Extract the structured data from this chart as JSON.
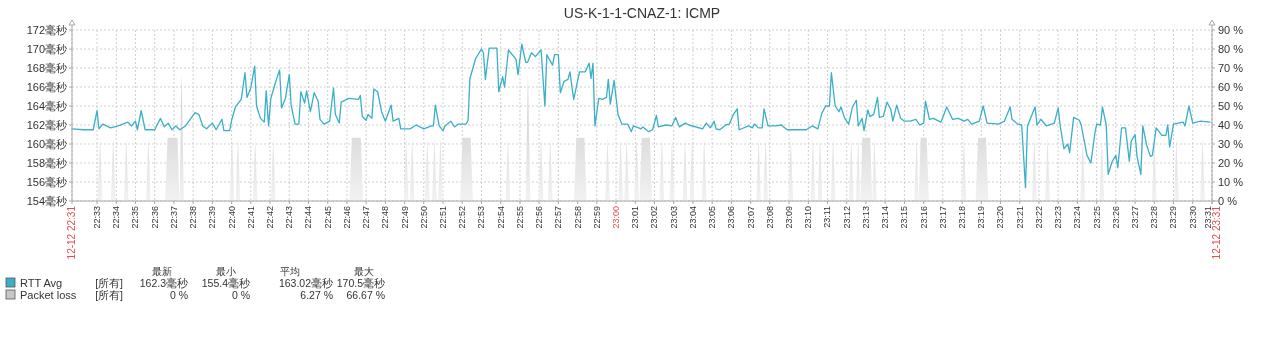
{
  "chart_data": {
    "type": "line",
    "title": "US-K-1-1-CNAZ-1: ICMP",
    "xlim": [
      22.5283,
      23.5167
    ],
    "xticks": [
      {
        "value": 22.5283,
        "label": "12-12 22:31"
      },
      {
        "value": 22.55,
        "label": "22:33"
      },
      {
        "value": 22.5667,
        "label": "22:34"
      },
      {
        "value": 22.5833,
        "label": "22:35"
      },
      {
        "value": 22.6,
        "label": "22:36"
      },
      {
        "value": 22.6167,
        "label": "22:37"
      },
      {
        "value": 22.6333,
        "label": "22:38"
      },
      {
        "value": 22.65,
        "label": "22:39"
      },
      {
        "value": 22.6667,
        "label": "22:40"
      },
      {
        "value": 22.6833,
        "label": "22:41"
      },
      {
        "value": 22.7,
        "label": "22:42"
      },
      {
        "value": 22.7167,
        "label": "22:43"
      },
      {
        "value": 22.7333,
        "label": "22:44"
      },
      {
        "value": 22.75,
        "label": "22:45"
      },
      {
        "value": 22.7667,
        "label": "22:46"
      },
      {
        "value": 22.7833,
        "label": "22:47"
      },
      {
        "value": 22.8,
        "label": "22:48"
      },
      {
        "value": 22.8167,
        "label": "22:49"
      },
      {
        "value": 22.8333,
        "label": "22:50"
      },
      {
        "value": 22.85,
        "label": "22:51"
      },
      {
        "value": 22.8667,
        "label": "22:52"
      },
      {
        "value": 22.8833,
        "label": "22:53"
      },
      {
        "value": 22.9,
        "label": "22:54"
      },
      {
        "value": 22.9167,
        "label": "22:55"
      },
      {
        "value": 22.9333,
        "label": "22:56"
      },
      {
        "value": 22.95,
        "label": "22:57"
      },
      {
        "value": 22.9667,
        "label": "22:58"
      },
      {
        "value": 22.9833,
        "label": "22:59"
      },
      {
        "value": 23,
        "label": "23:00"
      },
      {
        "value": 23.0167,
        "label": "23:01"
      },
      {
        "value": 23.0333,
        "label": "23:02"
      },
      {
        "value": 23.05,
        "label": "23:03"
      },
      {
        "value": 23.0667,
        "label": "23:04"
      },
      {
        "value": 23.0833,
        "label": "23:05"
      },
      {
        "value": 23.1,
        "label": "23:06"
      },
      {
        "value": 23.1167,
        "label": "23:07"
      },
      {
        "value": 23.1333,
        "label": "23:08"
      },
      {
        "value": 23.15,
        "label": "23:09"
      },
      {
        "value": 23.1667,
        "label": "23:10"
      },
      {
        "value": 23.1833,
        "label": "23:11"
      },
      {
        "value": 23.2,
        "label": "23:12"
      },
      {
        "value": 23.2167,
        "label": "23:13"
      },
      {
        "value": 23.2333,
        "label": "23:14"
      },
      {
        "value": 23.25,
        "label": "23:15"
      },
      {
        "value": 23.2667,
        "label": "23:16"
      },
      {
        "value": 23.2833,
        "label": "23:17"
      },
      {
        "value": 23.3,
        "label": "23:18"
      },
      {
        "value": 23.3167,
        "label": "23:19"
      },
      {
        "value": 23.3333,
        "label": "23:20"
      },
      {
        "value": 23.35,
        "label": "23:21"
      },
      {
        "value": 23.3667,
        "label": "23:22"
      },
      {
        "value": 23.3833,
        "label": "23:23"
      },
      {
        "value": 23.4,
        "label": "23:24"
      },
      {
        "value": 23.4167,
        "label": "23:25"
      },
      {
        "value": 23.4333,
        "label": "23:26"
      },
      {
        "value": 23.45,
        "label": "23:27"
      },
      {
        "value": 23.4667,
        "label": "23:28"
      },
      {
        "value": 23.4833,
        "label": "23:29"
      },
      {
        "value": 23.5,
        "label": "23:30"
      },
      {
        "value": 23.5167,
        "label": "23:31"
      },
      {
        "value": 23.5167,
        "label": "12-12 23:31"
      }
    ],
    "ylim": [
      154,
      172
    ],
    "yticks": [
      {
        "value": 154,
        "label": "154毫秒"
      },
      {
        "value": 156,
        "label": "156毫秒"
      },
      {
        "value": 158,
        "label": "158毫秒"
      },
      {
        "value": 160,
        "label": "160毫秒"
      },
      {
        "value": 162,
        "label": "162毫秒"
      },
      {
        "value": 164,
        "label": "164毫秒"
      },
      {
        "value": 166,
        "label": "166毫秒"
      },
      {
        "value": 168,
        "label": "168毫秒"
      },
      {
        "value": 170,
        "label": "170毫秒"
      },
      {
        "value": 172,
        "label": "172毫秒"
      }
    ],
    "y2lim": [
      0,
      90
    ],
    "y2ticks": [
      {
        "value": 0,
        "label": "0 %"
      },
      {
        "value": 10,
        "label": "10 %"
      },
      {
        "value": 20,
        "label": "20 %"
      },
      {
        "value": 30,
        "label": "30 %"
      },
      {
        "value": 40,
        "label": "40 %"
      },
      {
        "value": 50,
        "label": "50 %"
      },
      {
        "value": 60,
        "label": "60 %"
      },
      {
        "value": 70,
        "label": "70 %"
      },
      {
        "value": 80,
        "label": "80 %"
      },
      {
        "value": 90,
        "label": "90 %"
      }
    ],
    "grid": true,
    "legend": "bottom left",
    "annotations": [
      "最新",
      "最小",
      "平均",
      "最大",
      "[所有]",
      "162.3毫秒",
      "155.4毫秒",
      "163.02毫秒",
      "170.5毫秒",
      "[所有]",
      "0 %",
      "0 %",
      "6.27 %",
      "66.67 %"
    ],
    "series": [
      {
        "name": "Packet loss",
        "type": "area",
        "axis": "y2",
        "color": "#c8c8c8",
        "x": [
          22.5283,
          22.5506,
          22.5526,
          22.5546,
          22.562,
          22.564,
          22.566,
          22.5733,
          22.5753,
          22.5773,
          22.5925,
          22.5945,
          22.5965,
          22.6091,
          22.6111,
          22.6198,
          22.6215,
          22.6216,
          22.6233,
          22.6253,
          22.665,
          22.667,
          22.669,
          22.6702,
          22.6722,
          22.6742,
          22.6851,
          22.6871,
          22.6891,
          22.7008,
          22.7028,
          22.7048,
          22.7689,
          22.7709,
          22.7787,
          22.7807,
          22.816,
          22.818,
          22.82,
          22.8212,
          22.8232,
          22.8252,
          22.8343,
          22.8363,
          22.8383,
          22.8405,
          22.8425,
          22.8445,
          22.8457,
          22.8477,
          22.8497,
          22.8649,
          22.8669,
          22.8739,
          22.8759,
          22.9042,
          22.9062,
          22.9082,
          22.9216,
          22.9236,
          22.9256,
          22.933,
          22.935,
          22.937,
          22.9409,
          22.9429,
          22.9449,
          22.9635,
          22.9655,
          22.9725,
          22.9745,
          22.9906,
          22.9926,
          22.9946,
          23.002,
          23.004,
          23.006,
          23.0072,
          23.0092,
          23.0112,
          23.0159,
          23.0179,
          23.0199,
          23.0203,
          23.0223,
          23.0293,
          23.0313,
          23.0377,
          23.0397,
          23.0417,
          23.0465,
          23.0485,
          23.0505,
          23.0578,
          23.0598,
          23.0618,
          23.0639,
          23.0659,
          23.0679,
          23.0744,
          23.0764,
          23.0784,
          23.1216,
          23.1236,
          23.1256,
          23.1277,
          23.1297,
          23.1317,
          23.1495,
          23.1515,
          23.1535,
          23.1687,
          23.1707,
          23.1727,
          23.1748,
          23.1768,
          23.1788,
          23.1862,
          23.1882,
          23.1902,
          23.2019,
          23.2039,
          23.2059,
          23.208,
          23.21,
          23.2117,
          23.2119,
          23.2135,
          23.2204,
          23.222,
          23.2222,
          23.224,
          23.226,
          23.2586,
          23.2606,
          23.2622,
          23.2624,
          23.2641,
          23.2693,
          23.2713,
          23.2996,
          23.3016,
          23.3036,
          23.3118,
          23.3138,
          23.3208,
          23.3228,
          23.3607,
          23.3627,
          23.3647,
          23.3721,
          23.3741,
          23.3761,
          23.4026,
          23.4046,
          23.4066,
          23.4192,
          23.4212,
          23.4232,
          23.4646,
          23.4666,
          23.4686,
          23.4838,
          23.4858,
          23.4878,
          23.5065,
          23.5085,
          23.5105,
          23.515
        ],
        "values": [
          0,
          0,
          33.33,
          0,
          0,
          33.33,
          0,
          0,
          33.33,
          0,
          0,
          33.33,
          0,
          0,
          33.33,
          33.33,
          0,
          0,
          66.67,
          0,
          0,
          33.33,
          0,
          0,
          33.33,
          0,
          0,
          33.33,
          0,
          0,
          33.33,
          0,
          0,
          33.33,
          33.33,
          0,
          0,
          33.33,
          0,
          0,
          33.33,
          0,
          0,
          33.33,
          0,
          0,
          33.33,
          0,
          0,
          33.33,
          0,
          0,
          33.33,
          33.33,
          0,
          0,
          33.33,
          0,
          0,
          66.67,
          0,
          0,
          33.33,
          0,
          0,
          33.33,
          0,
          0,
          33.33,
          33.33,
          0,
          0,
          33.33,
          0,
          0,
          33.33,
          0,
          0,
          33.33,
          0,
          0,
          33.33,
          0,
          0,
          33.33,
          33.33,
          0,
          0,
          33.33,
          0,
          0,
          33.33,
          0,
          0,
          33.33,
          0,
          0,
          33.33,
          0,
          0,
          33.33,
          0,
          0,
          33.33,
          0,
          0,
          33.33,
          0,
          0,
          33.33,
          0,
          0,
          33.33,
          0,
          0,
          33.33,
          0,
          0,
          33.33,
          0,
          0,
          33.33,
          0,
          0,
          33.33,
          0,
          0,
          33.33,
          33.33,
          0,
          0,
          33.33,
          0,
          0,
          33.33,
          0,
          0,
          33.33,
          33.33,
          0,
          0,
          33.33,
          0,
          0,
          33.33,
          33.33,
          0,
          0,
          33.33,
          0,
          0,
          33.33,
          0,
          0,
          33.33,
          0,
          0,
          33.33,
          0,
          0,
          33.33,
          0,
          0,
          33.33,
          0,
          0,
          33.33,
          0,
          0
        ]
      },
      {
        "name": "RTT Avg",
        "color": "#3aafc8",
        "x": [
          22.5283,
          22.5383,
          22.5467,
          22.55,
          22.5517,
          22.555,
          22.5617,
          22.5683,
          22.5767,
          22.58,
          22.5833,
          22.585,
          22.5883,
          22.5917,
          22.6,
          22.605,
          22.6083,
          22.6117,
          22.615,
          22.6183,
          22.6217,
          22.6267,
          22.635,
          22.6383,
          22.6417,
          22.645,
          22.65,
          22.6533,
          22.6583,
          22.66,
          22.665,
          22.6667,
          22.67,
          22.675,
          22.6783,
          22.68,
          22.6833,
          22.6867,
          22.6883,
          22.6917,
          22.695,
          22.6967,
          22.6987,
          22.7007,
          22.705,
          22.7083,
          22.71,
          22.7133,
          22.7167,
          22.7183,
          22.7217,
          22.725,
          22.7267,
          22.73,
          22.7317,
          22.735,
          22.7383,
          22.7417,
          22.7433,
          22.7467,
          22.7517,
          22.755,
          22.7567,
          22.76,
          22.7617,
          22.7683,
          22.7767,
          22.7783,
          22.78,
          22.7833,
          22.785,
          22.7883,
          22.79,
          22.7933,
          22.7967,
          22.8,
          22.805,
          22.8067,
          22.8117,
          22.8133,
          22.8217,
          22.8267,
          22.8333,
          22.84,
          22.8417,
          22.8433,
          22.8467,
          22.85,
          22.8517,
          22.8567,
          22.86,
          22.8633,
          22.87,
          22.8717,
          22.8733,
          22.8783,
          22.8833,
          22.885,
          22.8867,
          22.89,
          22.8967,
          22.8983,
          22.9017,
          22.9033,
          22.9067,
          22.9133,
          22.915,
          22.9183,
          22.9217,
          22.9233,
          22.9267,
          22.93,
          22.935,
          22.9383,
          22.94,
          22.945,
          22.9467,
          22.95,
          22.9517,
          22.955,
          22.9583,
          22.96,
          22.9633,
          22.9683,
          22.9733,
          22.9767,
          22.9783,
          22.98,
          22.9817,
          22.985,
          22.9883,
          22.9917,
          22.9933,
          22.995,
          22.9983,
          23.0017,
          23.005,
          23.01,
          23.0133,
          23.015,
          23.0217,
          23.0233,
          23.0283,
          23.0317,
          23.035,
          23.0367,
          23.0433,
          23.0483,
          23.0517,
          23.055,
          23.06,
          23.0633,
          23.075,
          23.0783,
          23.0817,
          23.085,
          23.0867,
          23.09,
          23.095,
          23.0983,
          23.1017,
          23.105,
          23.1067,
          23.115,
          23.1183,
          23.12,
          23.1233,
          23.1267,
          23.1283,
          23.1317,
          23.1383,
          23.1433,
          23.1483,
          23.165,
          23.17,
          23.175,
          23.1783,
          23.1817,
          23.185,
          23.1867,
          23.19,
          23.1933,
          23.195,
          23.1983,
          23.2017,
          23.205,
          23.2083,
          23.21,
          23.2133,
          23.215,
          23.2183,
          23.22,
          23.2233,
          23.2267,
          23.2283,
          23.2317,
          23.235,
          23.2383,
          23.24,
          23.2433,
          23.2467,
          23.25,
          23.255,
          23.26,
          23.2633,
          23.2667,
          23.2683,
          23.2717,
          23.275,
          23.2817,
          23.2867,
          23.2917,
          23.2967,
          23.3017,
          23.305,
          23.3083,
          23.315,
          23.3183,
          23.3217,
          23.3317,
          23.3367,
          23.3417,
          23.3433,
          23.3483,
          23.3517,
          23.355,
          23.3567,
          23.3633,
          23.365,
          23.3683,
          23.3733,
          23.38,
          23.3833,
          23.385,
          23.3883,
          23.3917,
          23.3933,
          23.3967,
          23.4017,
          23.4033,
          23.4083,
          23.4117,
          23.415,
          23.4167,
          23.42,
          23.4217,
          23.425,
          23.4267,
          23.43,
          23.4333,
          23.435,
          23.4383,
          23.4417,
          23.445,
          23.4467,
          23.45,
          23.4517,
          23.455,
          23.4567,
          23.46,
          23.4633,
          23.465,
          23.4683,
          23.4733,
          23.4767,
          23.4783,
          23.48,
          23.4833,
          23.4917,
          23.4933,
          23.4967,
          23.5,
          23.5067,
          23.515
        ],
        "values": [
          161.6,
          161.5,
          161.5,
          163.5,
          161.6,
          162.1,
          161.7,
          161.9,
          162.3,
          161.9,
          162.4,
          161.5,
          163.5,
          161.5,
          161.5,
          162.7,
          161.8,
          162.2,
          161.5,
          161.9,
          161.5,
          161.9,
          163.3,
          163.1,
          161.9,
          161.6,
          162.2,
          161.5,
          162.6,
          161.4,
          161.4,
          162.5,
          163.9,
          164.7,
          167.5,
          164.9,
          165.9,
          168.2,
          164.0,
          162.7,
          162.3,
          165.6,
          161.9,
          164.8,
          166.6,
          167.8,
          163.8,
          164.8,
          167.3,
          164.1,
          162.1,
          162.1,
          165.5,
          164.3,
          165.6,
          163.4,
          165.4,
          164.5,
          162.6,
          162.1,
          162.4,
          165.9,
          163.1,
          162.2,
          164.4,
          164.8,
          164.7,
          165.1,
          162.9,
          162.5,
          163.1,
          162.7,
          165.8,
          165.5,
          163.4,
          162.4,
          164.1,
          162.4,
          162.7,
          161.6,
          161.6,
          162.0,
          161.6,
          161.9,
          161.9,
          164.1,
          161.9,
          161.4,
          161.9,
          162.4,
          161.8,
          162.1,
          162.1,
          162.5,
          166.9,
          169.0,
          170.0,
          169.6,
          166.8,
          170.1,
          170.1,
          165.5,
          167.1,
          166.0,
          169.9,
          168.9,
          167.3,
          170.5,
          168.6,
          168.6,
          169.6,
          169.2,
          169.9,
          164.0,
          169.4,
          168.3,
          169.4,
          169.4,
          165.4,
          166.6,
          166.8,
          167.6,
          164.7,
          167.6,
          167.6,
          168.5,
          166.9,
          168.5,
          161.9,
          164.8,
          164.7,
          164.9,
          166.8,
          164.2,
          166.7,
          163.1,
          162.1,
          162.1,
          161.3,
          161.9,
          161.6,
          161.8,
          161.3,
          161.5,
          163.0,
          161.8,
          162.0,
          161.9,
          162.8,
          161.8,
          162.2,
          162.0,
          161.6,
          162.2,
          161.7,
          162.4,
          161.6,
          161.5,
          162.0,
          162.1,
          163.1,
          163.7,
          161.5,
          161.9,
          161.7,
          162.1,
          161.7,
          161.7,
          163.7,
          161.9,
          161.9,
          162.0,
          161.5,
          161.5,
          161.9,
          161.6,
          163.2,
          164.0,
          164.0,
          167.5,
          164.0,
          163.4,
          163.9,
          162.7,
          162.1,
          163.9,
          164.6,
          161.9,
          162.7,
          161.4,
          163.6,
          162.9,
          163.1,
          164.9,
          162.8,
          162.9,
          164.4,
          163.6,
          162.4,
          164.1,
          162.7,
          162.4,
          162.4,
          162.6,
          162.0,
          162.2,
          164.5,
          162.6,
          162.7,
          162.3,
          163.9,
          162.6,
          162.7,
          162.4,
          162.6,
          162.1,
          162.4,
          164.0,
          162.2,
          162.1,
          162.4,
          163.9,
          162.6,
          162.1,
          162.0,
          155.4,
          161.9,
          163.9,
          162.0,
          162.6,
          161.9,
          162.2,
          163.8,
          162.0,
          159.5,
          160.0,
          159.1,
          162.8,
          162.5,
          162.0,
          158.8,
          158.0,
          161.0,
          162.1,
          162.0,
          163.9,
          162.0,
          156.8,
          158.1,
          158.8,
          157.5,
          161.7,
          161.7,
          158.2,
          160.3,
          161.0,
          158.7,
          156.8,
          161.9,
          159.9,
          158.7,
          158.8,
          161.7,
          160.9,
          160.9,
          162.0,
          159.7,
          162.1,
          162.3,
          161.9,
          164.0,
          162.2,
          162.4,
          162.3
        ]
      }
    ]
  }
}
